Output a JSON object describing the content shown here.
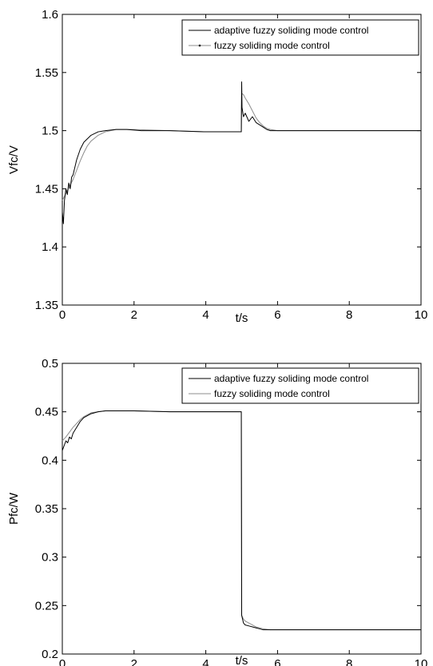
{
  "chart_data": [
    {
      "type": "line",
      "title": "",
      "xlabel": "t/s",
      "ylabel": "Vfc/V",
      "xlim": [
        0,
        10
      ],
      "ylim": [
        1.35,
        1.6
      ],
      "x_ticks": [
        "0",
        "2",
        "4",
        "6",
        "8",
        "10"
      ],
      "y_ticks": [
        "1.35",
        "1.4",
        "1.45",
        "1.5",
        "1.55",
        "1.6"
      ],
      "grid": false,
      "legend_position": "top-right",
      "series": [
        {
          "name": "adaptive fuzzy soliding mode control",
          "color": "#000000",
          "x": [
            0,
            0.03,
            0.06,
            0.1,
            0.14,
            0.18,
            0.22,
            0.26,
            0.3,
            0.4,
            0.5,
            0.6,
            0.8,
            1.0,
            1.2,
            1.5,
            1.8,
            2.2,
            3,
            4,
            4.99,
            5.0,
            5.01,
            5.05,
            5.1,
            5.2,
            5.3,
            5.4,
            5.5,
            5.6,
            5.7,
            5.8,
            6,
            7,
            8,
            9,
            10
          ],
          "y": [
            1.43,
            1.42,
            1.44,
            1.45,
            1.445,
            1.455,
            1.45,
            1.46,
            1.462,
            1.475,
            1.484,
            1.49,
            1.496,
            1.499,
            1.5,
            1.501,
            1.501,
            1.5,
            1.5,
            1.499,
            1.499,
            1.542,
            1.52,
            1.512,
            1.515,
            1.508,
            1.512,
            1.507,
            1.505,
            1.503,
            1.501,
            1.5,
            1.5,
            1.5,
            1.5,
            1.5,
            1.5
          ]
        },
        {
          "name": "fuzzy soliding mode control",
          "color": "#8c8c8c",
          "x": [
            0,
            0.05,
            0.1,
            0.2,
            0.3,
            0.4,
            0.5,
            0.6,
            0.7,
            0.8,
            1.0,
            1.2,
            1.5,
            2.0,
            3,
            4,
            4.99,
            5.0,
            5.05,
            5.1,
            5.2,
            5.3,
            5.4,
            5.5,
            5.6,
            5.7,
            5.8,
            6,
            7,
            8,
            9,
            10
          ],
          "y": [
            1.44,
            1.443,
            1.446,
            1.452,
            1.458,
            1.466,
            1.474,
            1.481,
            1.487,
            1.491,
            1.496,
            1.499,
            1.501,
            1.501,
            1.5,
            1.499,
            1.499,
            1.532,
            1.531,
            1.528,
            1.523,
            1.517,
            1.511,
            1.507,
            1.504,
            1.502,
            1.501,
            1.5,
            1.5,
            1.5,
            1.5,
            1.5
          ]
        }
      ]
    },
    {
      "type": "line",
      "title": "",
      "xlabel": "t/s",
      "ylabel": "Pfc/W",
      "xlim": [
        0,
        10
      ],
      "ylim": [
        0.2,
        0.5
      ],
      "x_ticks": [
        "0",
        "2",
        "4",
        "6",
        "8",
        "10"
      ],
      "y_ticks": [
        "0.2",
        "0.25",
        "0.3",
        "0.35",
        "0.4",
        "0.45",
        "0.5"
      ],
      "grid": false,
      "legend_position": "top-right",
      "series": [
        {
          "name": "adaptive fuzzy soliding mode control",
          "color": "#000000",
          "x": [
            0,
            0.05,
            0.1,
            0.15,
            0.2,
            0.25,
            0.3,
            0.4,
            0.5,
            0.6,
            0.8,
            1.0,
            1.2,
            1.5,
            2,
            3,
            4,
            4.99,
            5.0,
            5.05,
            5.1,
            5.2,
            5.3,
            5.4,
            5.5,
            5.6,
            5.8,
            6,
            7,
            8,
            9,
            10
          ],
          "y": [
            0.41,
            0.415,
            0.42,
            0.418,
            0.424,
            0.422,
            0.428,
            0.434,
            0.44,
            0.444,
            0.448,
            0.45,
            0.451,
            0.451,
            0.451,
            0.45,
            0.45,
            0.45,
            0.24,
            0.232,
            0.23,
            0.229,
            0.228,
            0.227,
            0.226,
            0.225,
            0.225,
            0.225,
            0.225,
            0.225,
            0.225,
            0.225
          ]
        },
        {
          "name": "fuzzy soliding mode control",
          "color": "#8c8c8c",
          "x": [
            0,
            0.1,
            0.2,
            0.3,
            0.4,
            0.5,
            0.6,
            0.7,
            0.8,
            1.0,
            1.2,
            1.5,
            2,
            3,
            4,
            4.99,
            5.0,
            5.05,
            5.1,
            5.2,
            5.3,
            5.4,
            5.5,
            5.6,
            5.8,
            6,
            7,
            8,
            9,
            10
          ],
          "y": [
            0.42,
            0.424,
            0.429,
            0.434,
            0.438,
            0.442,
            0.445,
            0.447,
            0.449,
            0.45,
            0.451,
            0.451,
            0.451,
            0.45,
            0.45,
            0.45,
            0.24,
            0.236,
            0.234,
            0.232,
            0.23,
            0.228,
            0.227,
            0.226,
            0.225,
            0.225,
            0.225,
            0.225,
            0.225,
            0.225
          ]
        }
      ]
    }
  ]
}
